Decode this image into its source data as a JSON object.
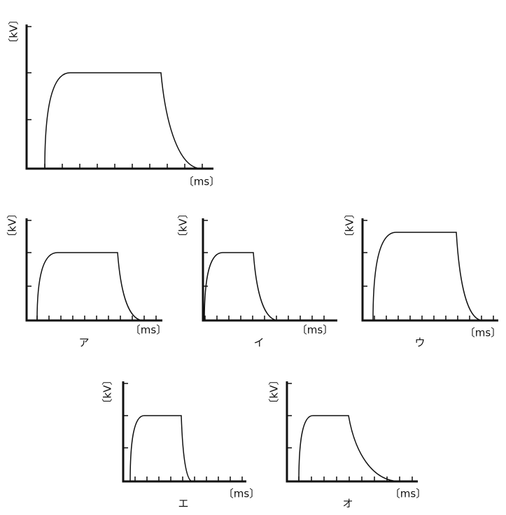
{
  "panels": [
    {
      "y_label": "〔kV〕",
      "x_label": "〔ms〕"
    },
    {
      "y_label": "〔kV〕",
      "x_label": "〔ms〕",
      "label": "ア"
    },
    {
      "y_label": "〔kV〕",
      "x_label": "〔ms〕",
      "label": "イ"
    },
    {
      "y_label": "〔kV〕",
      "x_label": "〔ms〕",
      "label": "ウ"
    },
    {
      "y_label": "〔kV〕",
      "x_label": "〔ms〕",
      "label": "エ"
    },
    {
      "y_label": "〔kV〕",
      "x_label": "〔ms〕",
      "label": "オ"
    }
  ]
}
